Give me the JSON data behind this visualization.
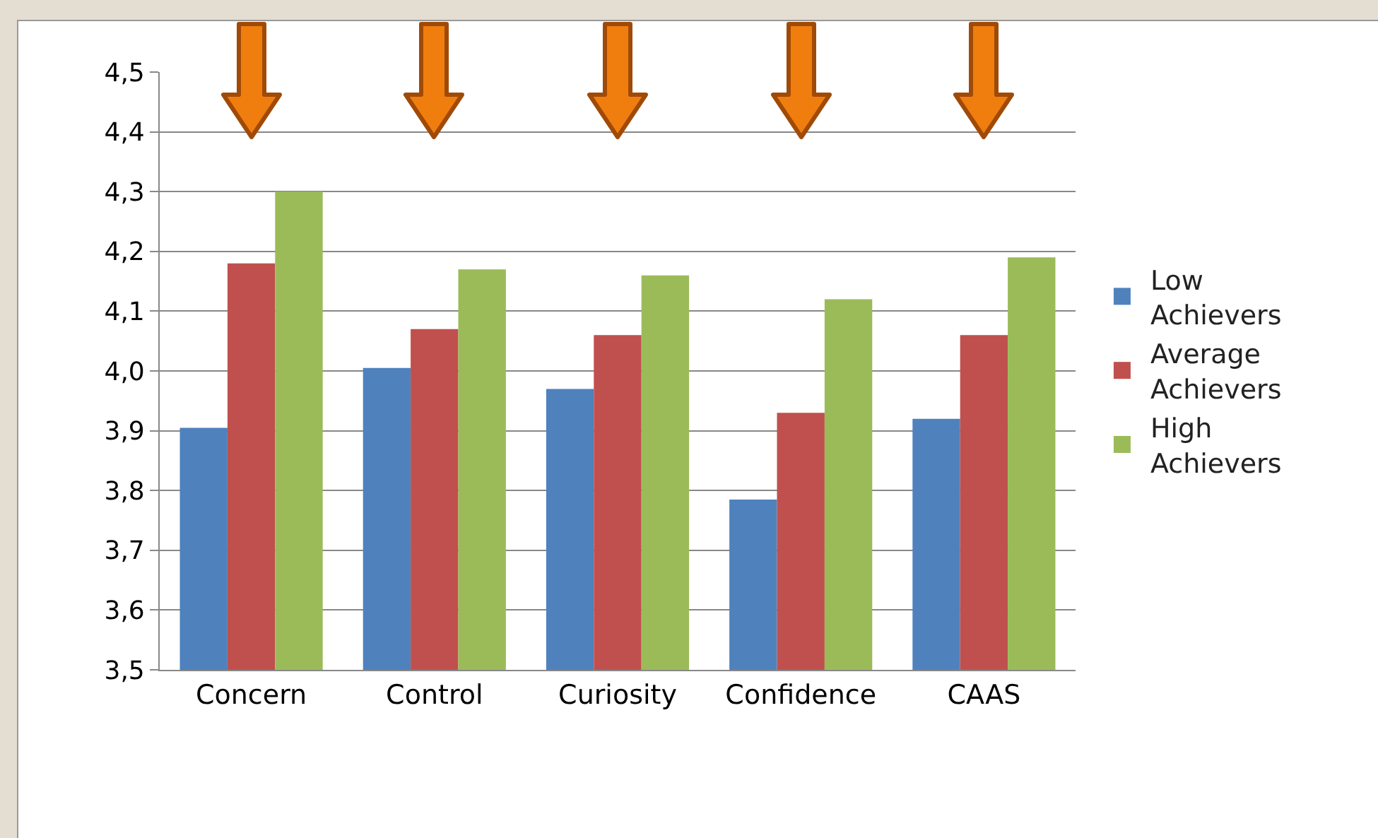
{
  "chart_data": {
    "type": "bar",
    "categories": [
      "Concern",
      "Control",
      "Curiosity",
      "Confidence",
      "CAAS"
    ],
    "series": [
      {
        "name": "Low Achievers",
        "color": "#4f81bd",
        "values": [
          3.905,
          4.005,
          3.97,
          3.785,
          3.92
        ]
      },
      {
        "name": "Average Achievers",
        "color": "#c0504d",
        "values": [
          4.18,
          4.07,
          4.06,
          3.93,
          4.06
        ]
      },
      {
        "name": "High Achievers",
        "color": "#9bbb59",
        "values": [
          4.3,
          4.17,
          4.16,
          4.12,
          4.19
        ]
      }
    ],
    "ylim": [
      3.5,
      4.5
    ],
    "yticks": [
      {
        "value": 3.5,
        "label": "3,5"
      },
      {
        "value": 3.6,
        "label": "3,6"
      },
      {
        "value": 3.7,
        "label": "3,7"
      },
      {
        "value": 3.8,
        "label": "3,8"
      },
      {
        "value": 3.9,
        "label": "3,9"
      },
      {
        "value": 4.0,
        "label": "4,0"
      },
      {
        "value": 4.1,
        "label": "4,1"
      },
      {
        "value": 4.2,
        "label": "4,2"
      },
      {
        "value": 4.3,
        "label": "4,3"
      },
      {
        "value": 4.4,
        "label": "4,4"
      },
      {
        "value": 4.5,
        "label": "4,5"
      }
    ],
    "grid": "y",
    "legend": "right"
  }
}
